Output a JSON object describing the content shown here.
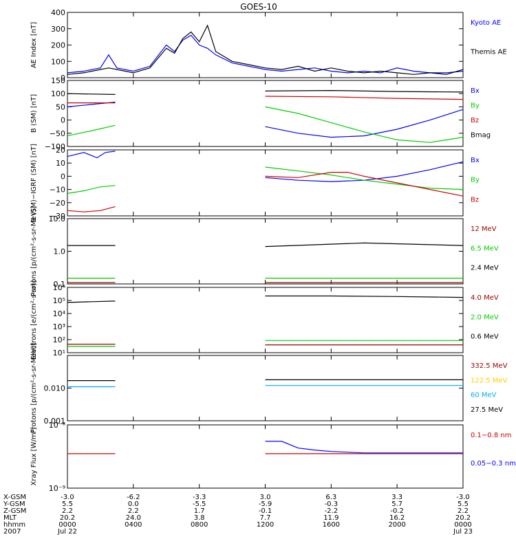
{
  "title": "GOES-10",
  "time_axis": {
    "rows": [
      {
        "label": "X-GSM",
        "values": [
          "-3.0",
          "-6.2",
          "-3.3",
          "3.0",
          "6.3",
          "3.3",
          "-3.0"
        ]
      },
      {
        "label": "Y-GSM",
        "values": [
          "5.5",
          "0.0",
          "-5.5",
          "-5.9",
          "-0.3",
          "5.7",
          "5.5"
        ]
      },
      {
        "label": "Z-GSM",
        "values": [
          "2.2",
          "2.2",
          "1.7",
          "-0.1",
          "-2.2",
          "-0.2",
          "2.2"
        ]
      },
      {
        "label": "MLT",
        "values": [
          "20.2",
          "24.0",
          "3.8",
          "7.7",
          "11.9",
          "16.2",
          "20.2"
        ]
      },
      {
        "label": "hhmm",
        "values": [
          "0000",
          "0400",
          "0800",
          "1200",
          "1600",
          "2000",
          "0000"
        ]
      },
      {
        "label": "2007",
        "values": [
          "Jul 22",
          "",
          "",
          "",
          "",
          "",
          "Jul 23"
        ]
      }
    ],
    "tick_hours": [
      0,
      4,
      8,
      12,
      16,
      20,
      24
    ]
  },
  "chart_data": [
    {
      "type": "line",
      "id": "ae",
      "ylabel": "AE Index [nT]",
      "scale": "linear",
      "ylim": [
        0,
        400
      ],
      "yticks": [
        0,
        100,
        200,
        300,
        400
      ],
      "ytick_labels": [
        "0",
        "100",
        "200",
        "300",
        "400"
      ],
      "series": [
        {
          "name": "Kyoto AE",
          "color": "#0000ff",
          "x": [
            0,
            1,
            2,
            2.5,
            3,
            4,
            5,
            6,
            6.5,
            7,
            7.5,
            8,
            8.5,
            9,
            10,
            11,
            12,
            13,
            14,
            15,
            16,
            17,
            18,
            19,
            20,
            21,
            22,
            23,
            24
          ],
          "y": [
            30,
            40,
            60,
            140,
            60,
            40,
            70,
            200,
            160,
            230,
            260,
            200,
            180,
            140,
            90,
            70,
            50,
            40,
            50,
            60,
            40,
            30,
            40,
            30,
            60,
            40,
            30,
            30,
            40
          ]
        },
        {
          "name": "Themis AE",
          "color": "#000000",
          "x": [
            0,
            1,
            2,
            2.5,
            3,
            4,
            5,
            6,
            6.5,
            7,
            7.5,
            8,
            8.5,
            9,
            10,
            11,
            12,
            13,
            14,
            15,
            16,
            17,
            18,
            19,
            20,
            21,
            22,
            23,
            24
          ],
          "y": [
            20,
            30,
            50,
            60,
            50,
            30,
            60,
            180,
            150,
            240,
            280,
            220,
            320,
            160,
            100,
            80,
            60,
            50,
            70,
            40,
            60,
            40,
            30,
            40,
            30,
            20,
            30,
            20,
            50
          ]
        }
      ],
      "legend_color": [
        "#0000ff",
        "#000000"
      ]
    },
    {
      "type": "line",
      "id": "b_sm",
      "ylabel": "B (SM) [nT]",
      "scale": "linear",
      "ylim": [
        -100,
        150
      ],
      "yticks": [
        -100,
        -50,
        0,
        50,
        100,
        150
      ],
      "ytick_labels": [
        "−100",
        "−50",
        "0",
        "50",
        "100",
        "150"
      ],
      "series": [
        {
          "name": "Bx",
          "color": "#0000ff",
          "segments": [
            {
              "x": [
                0,
                2.9
              ],
              "y": [
                50,
                68
              ]
            },
            {
              "x": [
                12,
                14,
                16,
                18,
                20,
                22,
                24
              ],
              "y": [
                -25,
                -50,
                -65,
                -60,
                -35,
                0,
                40
              ]
            }
          ]
        },
        {
          "name": "By",
          "color": "#00cc00",
          "segments": [
            {
              "x": [
                0,
                1.5,
                2.9
              ],
              "y": [
                -60,
                -40,
                -20
              ]
            },
            {
              "x": [
                12,
                14,
                16,
                18,
                20,
                22,
                24
              ],
              "y": [
                50,
                25,
                -10,
                -45,
                -75,
                -85,
                -65
              ]
            }
          ]
        },
        {
          "name": "Bz",
          "color": "#cc0000",
          "segments": [
            {
              "x": [
                0,
                2.9
              ],
              "y": [
                65,
                65
              ]
            },
            {
              "x": [
                12,
                16,
                20,
                24
              ],
              "y": [
                90,
                88,
                82,
                78
              ]
            }
          ]
        },
        {
          "name": "Bmag",
          "color": "#000000",
          "segments": [
            {
              "x": [
                0,
                2.9
              ],
              "y": [
                100,
                97
              ]
            },
            {
              "x": [
                12,
                16,
                20,
                24
              ],
              "y": [
                110,
                112,
                108,
                106
              ]
            }
          ]
        }
      ]
    },
    {
      "type": "line",
      "id": "b_igrf",
      "ylabel": "B (SM)−IGRF (SM) [nT]",
      "scale": "linear",
      "ylim": [
        -30,
        20
      ],
      "yticks": [
        -30,
        -20,
        -10,
        0,
        10,
        20
      ],
      "ytick_labels": [
        "−30",
        "−20",
        "−10",
        "0",
        "10",
        "20"
      ],
      "series": [
        {
          "name": "Bx",
          "color": "#0000ff",
          "segments": [
            {
              "x": [
                0,
                1,
                1.8,
                2.3,
                2.9
              ],
              "y": [
                15,
                18,
                14,
                18,
                19
              ]
            },
            {
              "x": [
                12,
                14,
                16,
                18,
                20,
                22,
                24
              ],
              "y": [
                -1,
                -3,
                -4,
                -3,
                0,
                5,
                11
              ]
            }
          ]
        },
        {
          "name": "By",
          "color": "#00cc00",
          "segments": [
            {
              "x": [
                0,
                1,
                2,
                2.9
              ],
              "y": [
                -13,
                -11,
                -8,
                -7
              ]
            },
            {
              "x": [
                12,
                14,
                16,
                18,
                20,
                22,
                24
              ],
              "y": [
                7,
                4,
                1,
                -3,
                -6,
                -9,
                -10
              ]
            }
          ]
        },
        {
          "name": "Bz",
          "color": "#cc0000",
          "segments": [
            {
              "x": [
                0,
                1,
                2,
                2.9
              ],
              "y": [
                -26,
                -27,
                -26,
                -23
              ]
            },
            {
              "x": [
                12,
                14,
                16,
                17,
                18,
                20,
                22,
                24
              ],
              "y": [
                0,
                -1,
                3,
                3,
                0,
                -5,
                -10,
                -15
              ]
            }
          ]
        }
      ]
    },
    {
      "type": "line",
      "id": "protons_low",
      "ylabel": "Protons [p/(cm²-s-sr-MeV)]",
      "scale": "log",
      "ylim": [
        0.1,
        10
      ],
      "yticks": [
        0.1,
        1,
        10
      ],
      "ytick_labels": [
        "0.1",
        "1.0",
        "10.0"
      ],
      "series": [
        {
          "name": "12 MeV",
          "color": "#990000",
          "segments": [
            {
              "x": [
                0,
                2.9
              ],
              "y": [
                0.11,
                0.11
              ]
            },
            {
              "x": [
                12,
                24
              ],
              "y": [
                0.11,
                0.11
              ]
            }
          ]
        },
        {
          "name": "6.5 MeV",
          "color": "#00cc00",
          "segments": [
            {
              "x": [
                0,
                2.9
              ],
              "y": [
                0.15,
                0.15
              ]
            },
            {
              "x": [
                12,
                24
              ],
              "y": [
                0.15,
                0.15
              ]
            }
          ]
        },
        {
          "name": "2.4 MeV",
          "color": "#000000",
          "segments": [
            {
              "x": [
                0,
                2.9
              ],
              "y": [
                1.5,
                1.5
              ]
            },
            {
              "x": [
                12,
                18,
                24
              ],
              "y": [
                1.4,
                1.8,
                1.5
              ]
            }
          ]
        }
      ]
    },
    {
      "type": "line",
      "id": "electrons",
      "ylabel": "Electrons [e/(cm²-s-sr)]",
      "scale": "log",
      "ylim": [
        10,
        1000000
      ],
      "yticks": [
        10,
        100,
        1000,
        10000,
        100000,
        1000000
      ],
      "ytick_labels": [
        "10¹",
        "10²",
        "10³",
        "10⁴",
        "10⁵",
        "10⁶"
      ],
      "series": [
        {
          "name": "4.0 MeV",
          "color": "#990000",
          "segments": [
            {
              "x": [
                0,
                2.9
              ],
              "y": [
                45,
                45
              ]
            },
            {
              "x": [
                12,
                24
              ],
              "y": [
                40,
                40
              ]
            }
          ]
        },
        {
          "name": "2.0 MeV",
          "color": "#00cc00",
          "segments": [
            {
              "x": [
                0,
                2.9
              ],
              "y": [
                30,
                30
              ]
            },
            {
              "x": [
                12,
                24
              ],
              "y": [
                85,
                85
              ]
            }
          ]
        },
        {
          "name": "0.6 MeV",
          "color": "#000000",
          "segments": [
            {
              "x": [
                0,
                1.5,
                2.9
              ],
              "y": [
                70000,
                80000,
                90000
              ]
            },
            {
              "x": [
                12,
                16,
                20,
                24
              ],
              "y": [
                220000,
                220000,
                200000,
                170000
              ]
            }
          ]
        }
      ]
    },
    {
      "type": "line",
      "id": "protons_high",
      "ylabel": "Protons [p/(cm²-s-sr-MeV)]",
      "scale": "log",
      "ylim": [
        0.001,
        0.1
      ],
      "yticks": [
        0.001,
        0.01
      ],
      "ytick_labels": [
        "0.001",
        "0.010"
      ],
      "series": [
        {
          "name": "332.5 MeV",
          "color": "#990000",
          "segments": []
        },
        {
          "name": "122.5 MeV",
          "color": "#ffcc00",
          "segments": []
        },
        {
          "name": "60 MeV",
          "color": "#00aaff",
          "segments": [
            {
              "x": [
                0,
                2.9
              ],
              "y": [
                0.011,
                0.011
              ]
            },
            {
              "x": [
                12,
                24
              ],
              "y": [
                0.012,
                0.012
              ]
            }
          ]
        },
        {
          "name": "27.5 MeV",
          "color": "#000000",
          "segments": [
            {
              "x": [
                0,
                2.9
              ],
              "y": [
                0.017,
                0.017
              ]
            },
            {
              "x": [
                12,
                24
              ],
              "y": [
                0.018,
                0.018
              ]
            }
          ]
        }
      ]
    },
    {
      "type": "line",
      "id": "xray",
      "ylabel": "Xray Flux [W/m²]",
      "scale": "log",
      "ylim": [
        1e-09,
        1e-08
      ],
      "yticks": [
        1e-09,
        1e-08
      ],
      "ytick_labels": [
        "10⁻⁹",
        "10⁻⁸"
      ],
      "series": [
        {
          "name": "0.1−0.8 nm",
          "color": "#cc0000",
          "segments": [
            {
              "x": [
                0,
                2.9
              ],
              "y": [
                3.5e-09,
                3.5e-09
              ]
            },
            {
              "x": [
                12,
                24
              ],
              "y": [
                3.5e-09,
                3.5e-09
              ]
            }
          ]
        },
        {
          "name": "0.05−0.3 nm",
          "color": "#0000ff",
          "segments": [
            {
              "x": [
                12,
                13,
                14,
                15,
                16,
                17,
                18,
                24
              ],
              "y": [
                5.5e-09,
                5.5e-09,
                4.3e-09,
                4e-09,
                3.8e-09,
                3.7e-09,
                3.6e-09,
                3.6e-09
              ]
            }
          ]
        }
      ]
    }
  ]
}
